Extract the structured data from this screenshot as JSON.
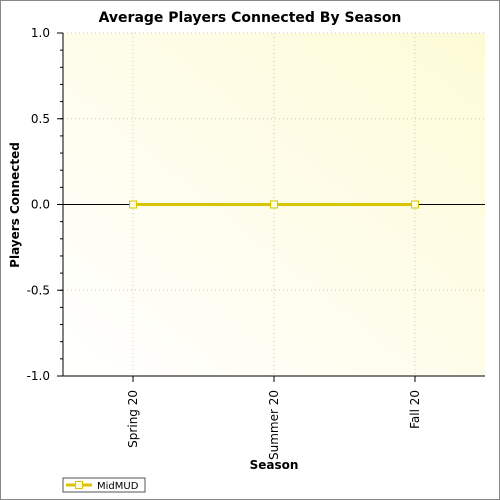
{
  "chart_data": {
    "type": "line",
    "title": "Average Players Connected By Season",
    "xlabel": "Season",
    "ylabel": "Players Connected",
    "categories": [
      "Spring 20",
      "Summer 20",
      "Fall 20"
    ],
    "series": [
      {
        "name": "MidMUD",
        "values": [
          0,
          0,
          0
        ]
      }
    ],
    "ylim": [
      -1.0,
      1.0
    ],
    "yticks": [
      "1.0",
      "0.5",
      "0.0",
      "-0.5",
      "-1.0"
    ],
    "grid": true,
    "legend": "bottom-left"
  },
  "colors": {
    "series": "#d8c400",
    "marker_fill": "#fffde0",
    "plot_bg_start": "#fdfbe0",
    "plot_bg_end": "#ffffff",
    "zero_line": "#000000"
  }
}
